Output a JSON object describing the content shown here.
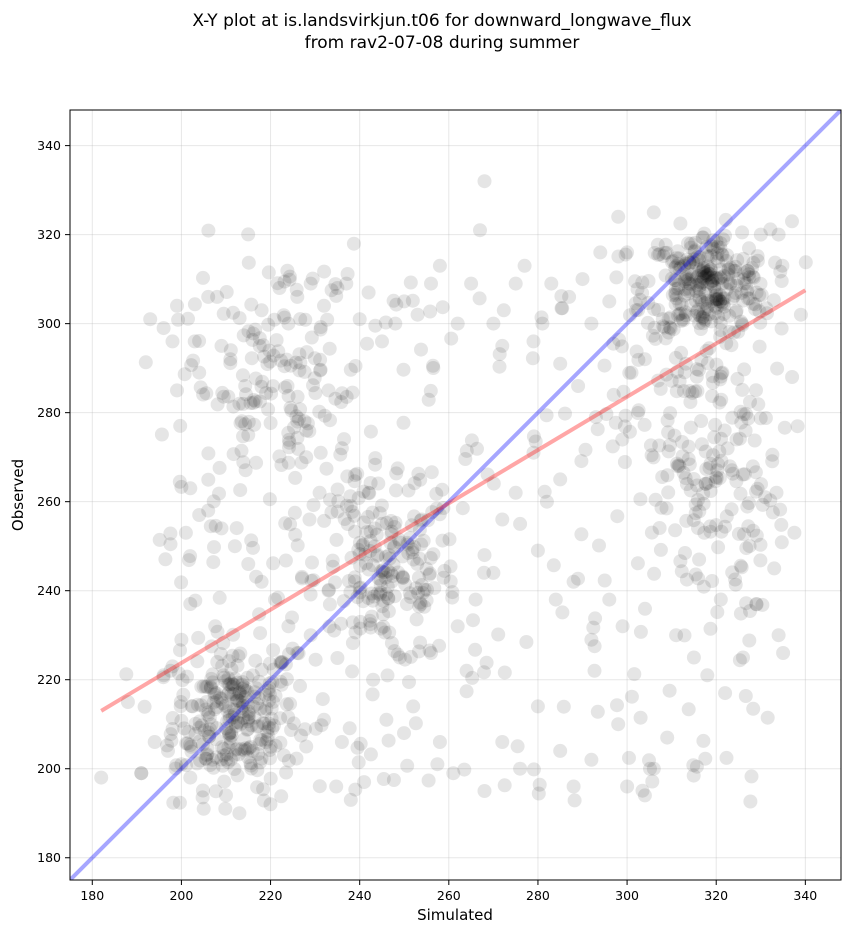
{
  "chart_data": {
    "type": "scatter",
    "title": "X-Y plot at is.landsvirkjun.t06 for downward_longwave_flux",
    "subtitle": "from rav2-07-08 during summer",
    "xlabel": "Simulated",
    "ylabel": "Observed",
    "xlim": [
      175,
      348
    ],
    "ylim": [
      175,
      348
    ],
    "x_ticks": [
      180,
      200,
      220,
      240,
      260,
      280,
      300,
      320,
      340
    ],
    "y_ticks": [
      180,
      200,
      220,
      240,
      260,
      280,
      300,
      320,
      340
    ],
    "grid": true,
    "point_color": "#000000",
    "point_opacity": 0.1,
    "reference_line": {
      "kind": "1:1",
      "color": "#0000ff",
      "from": [
        175,
        175
      ],
      "to": [
        348,
        348
      ]
    },
    "fit_line": {
      "kind": "regression",
      "color": "#ff0000",
      "from": [
        182,
        213
      ],
      "to": [
        340,
        307.5
      ]
    },
    "clusters": [
      {
        "x_mean": 212,
        "y_mean": 212,
        "x_sd": 7,
        "y_sd": 8,
        "count": 260
      },
      {
        "x_mean": 246,
        "y_mean": 243,
        "x_sd": 8,
        "y_sd": 10,
        "count": 180
      },
      {
        "x_mean": 318,
        "y_mean": 309,
        "x_sd": 7,
        "y_sd": 6,
        "count": 280
      },
      {
        "x_mean": 317,
        "y_mean": 270,
        "x_sd": 9,
        "y_sd": 18,
        "count": 180
      },
      {
        "x_mean": 222,
        "y_mean": 285,
        "x_sd": 10,
        "y_sd": 16,
        "count": 150
      }
    ],
    "points": [
      [
        182,
        198
      ],
      [
        188,
        215
      ],
      [
        191,
        199
      ],
      [
        193,
        301
      ],
      [
        196,
        299
      ],
      [
        198,
        296
      ],
      [
        199,
        304
      ],
      [
        199,
        285
      ],
      [
        201,
        253
      ],
      [
        202,
        263
      ],
      [
        204,
        289
      ],
      [
        206,
        306
      ],
      [
        208,
        306
      ],
      [
        209,
        295
      ],
      [
        211,
        292
      ],
      [
        213,
        282
      ],
      [
        215,
        275
      ],
      [
        218,
        303
      ],
      [
        222,
        308
      ],
      [
        224,
        300
      ],
      [
        226,
        306
      ],
      [
        229,
        309
      ],
      [
        232,
        304
      ],
      [
        235,
        308
      ],
      [
        237,
        309
      ],
      [
        240,
        301
      ],
      [
        242,
        307
      ],
      [
        245,
        296
      ],
      [
        248,
        300
      ],
      [
        250,
        305
      ],
      [
        253,
        302
      ],
      [
        256,
        309
      ],
      [
        258,
        313
      ],
      [
        262,
        300
      ],
      [
        265,
        309
      ],
      [
        267,
        321
      ],
      [
        268,
        332
      ],
      [
        270,
        300
      ],
      [
        272,
        295
      ],
      [
        275,
        309
      ],
      [
        277,
        313
      ],
      [
        279,
        296
      ],
      [
        283,
        309
      ],
      [
        287,
        306
      ],
      [
        290,
        310
      ],
      [
        292,
        300
      ],
      [
        294,
        316
      ],
      [
        296,
        305
      ],
      [
        298,
        324
      ],
      [
        300,
        316
      ],
      [
        302,
        303
      ],
      [
        306,
        325
      ],
      [
        330,
        320
      ],
      [
        334,
        320
      ],
      [
        337,
        323
      ],
      [
        339,
        302
      ],
      [
        333,
        245
      ],
      [
        334,
        230
      ],
      [
        335,
        226
      ],
      [
        331,
        261
      ],
      [
        329,
        237
      ],
      [
        326,
        225
      ],
      [
        322,
        217
      ],
      [
        318,
        221
      ],
      [
        315,
        225
      ],
      [
        311,
        230
      ],
      [
        309,
        207
      ],
      [
        306,
        200
      ],
      [
        304,
        194
      ],
      [
        300,
        196
      ],
      [
        298,
        210
      ],
      [
        292,
        202
      ],
      [
        288,
        196
      ],
      [
        285,
        204
      ],
      [
        280,
        214
      ],
      [
        276,
        200
      ],
      [
        272,
        206
      ],
      [
        268,
        195
      ],
      [
        264,
        222
      ],
      [
        261,
        199
      ],
      [
        258,
        206
      ],
      [
        256,
        226
      ],
      [
        252,
        214
      ],
      [
        249,
        225
      ],
      [
        246,
        211
      ],
      [
        243,
        220
      ],
      [
        241,
        197
      ],
      [
        238,
        193
      ],
      [
        236,
        206
      ],
      [
        232,
        211
      ],
      [
        228,
        205
      ],
      [
        223,
        203
      ],
      [
        220,
        192
      ],
      [
        216,
        204
      ],
      [
        213,
        190
      ],
      [
        210,
        194
      ],
      [
        205,
        191
      ],
      [
        202,
        198
      ],
      [
        200,
        201
      ],
      [
        197,
        204
      ],
      [
        194,
        206
      ],
      [
        191,
        199
      ],
      [
        268,
        248
      ],
      [
        272,
        256
      ],
      [
        276,
        255
      ],
      [
        280,
        249
      ],
      [
        284,
        238
      ],
      [
        288,
        242
      ],
      [
        292,
        229
      ],
      [
        296,
        238
      ],
      [
        299,
        232
      ],
      [
        285,
        265
      ],
      [
        282,
        260
      ],
      [
        279,
        271
      ],
      [
        275,
        262
      ],
      [
        270,
        244
      ],
      [
        266,
        238
      ],
      [
        262,
        232
      ],
      [
        281,
        300
      ],
      [
        285,
        291
      ],
      [
        289,
        286
      ],
      [
        293,
        279
      ],
      [
        297,
        284
      ],
      [
        301,
        289
      ],
      [
        304,
        292
      ],
      [
        231,
        262
      ],
      [
        228,
        270
      ],
      [
        226,
        278
      ],
      [
        233,
        285
      ],
      [
        236,
        272
      ],
      [
        239,
        266
      ],
      [
        242,
        262
      ],
      [
        245,
        255
      ],
      [
        238,
        259
      ],
      [
        233,
        240
      ],
      [
        229,
        230
      ],
      [
        226,
        226
      ],
      [
        224,
        232
      ],
      [
        221,
        238
      ],
      [
        218,
        242
      ],
      [
        215,
        246
      ],
      [
        212,
        250
      ],
      [
        209,
        254
      ],
      [
        206,
        258
      ],
      [
        204,
        257
      ],
      [
        202,
        237
      ],
      [
        200,
        229
      ],
      [
        198,
        223
      ],
      [
        196,
        221
      ]
    ]
  }
}
